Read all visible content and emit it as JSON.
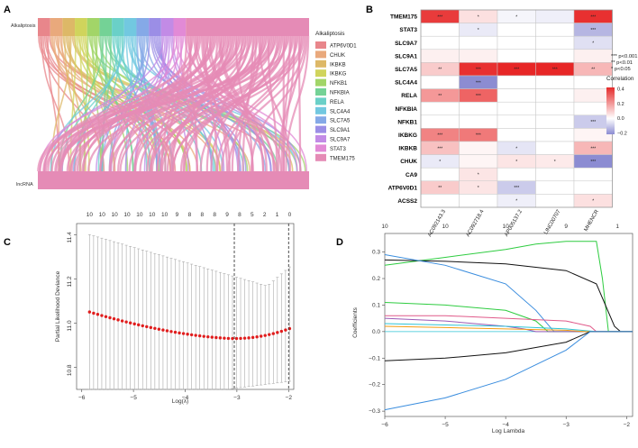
{
  "panels": {
    "A": {
      "letter": "A",
      "top_label": "Alkaliptosis",
      "bottom_label": "lncRNA",
      "legend_title": "Alkaliptosis",
      "legend": [
        {
          "label": "ATP6V0D1",
          "color": "#e8868b"
        },
        {
          "label": "CHUK",
          "color": "#e9a97c"
        },
        {
          "label": "IKBKB",
          "color": "#ddb867"
        },
        {
          "label": "IKBKG",
          "color": "#d0d45c"
        },
        {
          "label": "NFKB1",
          "color": "#a2d568"
        },
        {
          "label": "NFKBIA",
          "color": "#74d296"
        },
        {
          "label": "RELA",
          "color": "#6ad0c8"
        },
        {
          "label": "SLC4A4",
          "color": "#72c8e0"
        },
        {
          "label": "SLC7A5",
          "color": "#85a9e7"
        },
        {
          "label": "SLC9A1",
          "color": "#9b8ee6"
        },
        {
          "label": "SLC9A7",
          "color": "#c28be6"
        },
        {
          "label": "STAT3",
          "color": "#e28ad6"
        },
        {
          "label": "TMEM175",
          "color": "#e58bb6"
        }
      ]
    },
    "B": {
      "letter": "B",
      "rows": [
        "TMEM175",
        "STAT3",
        "SLC9A7",
        "SLC9A1",
        "SLC7A5",
        "SLC4A4",
        "RELA",
        "NFKBIA",
        "NFKB1",
        "IKBKG",
        "IKBKB",
        "CHUK",
        "CA9",
        "ATP6V0D1",
        "ACSS2"
      ],
      "cols": [
        "AC092143.3",
        "AC092718.4",
        "AP005137.2",
        "LINC00707",
        "MHENCR"
      ],
      "matrix": [
        [
          0.38,
          0.06,
          -0.02,
          -0.03,
          0.4
        ],
        [
          0.0,
          -0.04,
          0.0,
          0.0,
          -0.14
        ],
        [
          0.0,
          0.0,
          0.0,
          0.0,
          -0.06
        ],
        [
          0.03,
          0.03,
          0.0,
          0.0,
          0.03
        ],
        [
          0.1,
          0.4,
          0.42,
          0.42,
          0.14
        ],
        [
          0.0,
          -0.22,
          0.0,
          0.0,
          0.0
        ],
        [
          0.2,
          0.3,
          0.0,
          0.0,
          0.03
        ],
        [
          0.0,
          0.0,
          0.0,
          0.0,
          0.0
        ],
        [
          0.0,
          0.0,
          0.0,
          0.0,
          -0.1
        ],
        [
          0.24,
          0.26,
          0.0,
          0.0,
          0.02
        ],
        [
          0.12,
          0.02,
          -0.05,
          0.0,
          0.14
        ],
        [
          -0.04,
          0.02,
          0.05,
          0.04,
          -0.22
        ],
        [
          0.0,
          0.05,
          0.0,
          0.0,
          0.0
        ],
        [
          0.1,
          0.05,
          -0.1,
          0.0,
          0.0
        ],
        [
          0.0,
          0.0,
          -0.03,
          0.0,
          0.06
        ]
      ],
      "stars": [
        [
          "***",
          "*",
          "*",
          "",
          "***"
        ],
        [
          "",
          "*",
          "",
          "",
          "***"
        ],
        [
          "",
          "",
          "",
          "",
          "*"
        ],
        [
          "",
          "",
          "",
          "",
          ""
        ],
        [
          "**",
          "***",
          "***",
          "***",
          "**"
        ],
        [
          "",
          "***",
          "",
          "",
          ""
        ],
        [
          "**",
          "***",
          "",
          "",
          ""
        ],
        [
          "",
          "",
          "",
          "",
          ""
        ],
        [
          "",
          "",
          "",
          "",
          "***"
        ],
        [
          "***",
          "***",
          "",
          "",
          ""
        ],
        [
          "***",
          "",
          "*",
          "",
          "***"
        ],
        [
          "*",
          "",
          "*",
          "*",
          "***"
        ],
        [
          "",
          "*",
          "",
          "",
          ""
        ],
        [
          "**",
          "*",
          "***",
          "",
          ""
        ],
        [
          "",
          "",
          "*",
          "",
          "*"
        ]
      ],
      "sig_legend": [
        "*** p<0.001",
        "** p<0.01",
        "* p<0.05"
      ],
      "colorbar_title": "Correlation",
      "colorbar_ticks": [
        "0.4",
        "0.2",
        "0.0",
        "−0.2"
      ]
    },
    "C": {
      "letter": "C",
      "ylabel": "Partial Likelihood Deviance",
      "xlabel": "Log(λ)",
      "top_ticks": [
        "10",
        "10",
        "10",
        "10",
        "10",
        "10",
        "10",
        "9",
        "8",
        "8",
        "8",
        "9",
        "8",
        "5",
        "2",
        "1",
        "0"
      ],
      "xticks": [
        "−6",
        "−5",
        "−4",
        "−3",
        "−2"
      ],
      "yticks": [
        "10.8",
        "11.0",
        "11.2",
        "11.4"
      ]
    },
    "D": {
      "letter": "D",
      "ylabel": "Coefficients",
      "xlabel": "Log Lambda",
      "top_ticks": [
        "10",
        "10",
        "10",
        "9",
        "1"
      ],
      "xticks": [
        "−6",
        "−5",
        "−4",
        "−3",
        "−2"
      ],
      "yticks": [
        "−0.3",
        "−0.2",
        "−0.1",
        "0.0",
        "0.1",
        "0.2",
        "0.3"
      ]
    }
  },
  "chart_data": [
    {
      "type": "heatmap",
      "title": "",
      "rows": [
        "TMEM175",
        "STAT3",
        "SLC9A7",
        "SLC9A1",
        "SLC7A5",
        "SLC4A4",
        "RELA",
        "NFKBIA",
        "NFKB1",
        "IKBKG",
        "IKBKB",
        "CHUK",
        "CA9",
        "ATP6V0D1",
        "ACSS2"
      ],
      "cols": [
        "AC092143.3",
        "AC092718.4",
        "AP005137.2",
        "LINC00707",
        "MHENCR"
      ],
      "color_range": [
        -0.2,
        0.4
      ]
    },
    {
      "type": "scatter",
      "title": "",
      "xlabel": "Log(λ)",
      "ylabel": "Partial Likelihood Deviance",
      "xlim": [
        -6.1,
        -1.9
      ],
      "ylim": [
        10.7,
        11.45
      ],
      "x_start": -5.85,
      "x_end": -1.98,
      "y_start": 11.05,
      "y_min": 10.93,
      "y_end": 10.975,
      "x_min_at": -3.05,
      "vlines": [
        -3.05,
        -2.0
      ],
      "error_lower_start": 10.7,
      "error_upper_start": 11.4,
      "error_upper_min": 11.17
    },
    {
      "type": "line",
      "title": "",
      "xlabel": "Log Lambda",
      "ylabel": "Coefficients",
      "xlim": [
        -6.0,
        -1.9
      ],
      "ylim": [
        -0.32,
        0.37
      ],
      "series": [
        {
          "name": "s1",
          "color": "#2ecc40",
          "x": [
            -6.0,
            -5.0,
            -4.0,
            -3.5,
            -3.0,
            -2.5,
            -2.4,
            -2.3
          ],
          "values": [
            0.25,
            0.28,
            0.31,
            0.33,
            0.34,
            0.34,
            0.2,
            0.0
          ]
        },
        {
          "name": "s2",
          "color": "#111111",
          "x": [
            -6.0,
            -5.0,
            -4.0,
            -3.0,
            -2.5,
            -2.2,
            -2.1
          ],
          "values": [
            0.27,
            0.265,
            0.255,
            0.23,
            0.18,
            0.02,
            0.0
          ]
        },
        {
          "name": "s3",
          "color": "#3a8dde",
          "x": [
            -6.0,
            -5.0,
            -4.0,
            -3.5,
            -3.2
          ],
          "values": [
            0.29,
            0.25,
            0.18,
            0.08,
            0.0
          ]
        },
        {
          "name": "s4",
          "color": "#2ecc40",
          "x": [
            -6.0,
            -5.0,
            -4.0,
            -3.5,
            -3.3
          ],
          "values": [
            0.11,
            0.1,
            0.08,
            0.04,
            0.0
          ]
        },
        {
          "name": "s5",
          "color": "#e05a8a",
          "x": [
            -6.0,
            -5.0,
            -4.0,
            -3.0,
            -2.6,
            -2.5
          ],
          "values": [
            0.06,
            0.06,
            0.05,
            0.04,
            0.02,
            0.0
          ]
        },
        {
          "name": "s6",
          "color": "#9b59b6",
          "x": [
            -6.0,
            -5.0,
            -4.0,
            -3.7,
            -3.5
          ],
          "values": [
            0.05,
            0.04,
            0.02,
            0.01,
            0.0
          ]
        },
        {
          "name": "s7",
          "color": "#2ec4d6",
          "x": [
            -6.0,
            -5.0,
            -4.0,
            -3.0,
            -2.5
          ],
          "values": [
            0.03,
            0.025,
            0.02,
            0.01,
            0.0
          ]
        },
        {
          "name": "s8",
          "color": "#f39c12",
          "x": [
            -6.0,
            -5.0,
            -4.0,
            -3.0,
            -2.7
          ],
          "values": [
            0.02,
            0.015,
            0.01,
            0.005,
            0.0
          ]
        },
        {
          "name": "s9",
          "color": "#111111",
          "x": [
            -6.0,
            -5.0,
            -4.0,
            -3.0,
            -2.6
          ],
          "values": [
            -0.11,
            -0.1,
            -0.08,
            -0.04,
            0.0
          ]
        },
        {
          "name": "s10",
          "color": "#3a8dde",
          "x": [
            -6.0,
            -5.0,
            -4.0,
            -3.0,
            -2.6
          ],
          "values": [
            -0.295,
            -0.25,
            -0.18,
            -0.07,
            0.0
          ]
        }
      ]
    }
  ]
}
